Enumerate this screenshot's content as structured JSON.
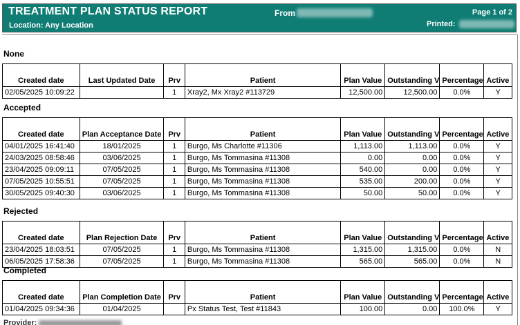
{
  "header": {
    "title": "TREATMENT PLAN STATUS REPORT",
    "location": "Location: Any Location",
    "from_label": "From",
    "page": "Page 1 of 2",
    "printed_label": "Printed:"
  },
  "columns": {
    "created": "Created date",
    "prv": "Prv",
    "patient": "Patient",
    "plan_value": "Plan Value",
    "outstanding": "Outstanding Value",
    "percentage": "Percentage Completed",
    "active": "Active Plan"
  },
  "sections": [
    {
      "title": "None",
      "date_header": "Last Updated Date",
      "rows": [
        [
          "02/05/2025 10:09:22",
          "",
          "1",
          "Xray2, Mx Xray2 #113729",
          "12,500.00",
          "12,500.00",
          "0.0%",
          "Y"
        ]
      ]
    },
    {
      "title": "Accepted",
      "date_header": "Plan Acceptance Date",
      "rows": [
        [
          "04/01/2025 16:41:40",
          "18/01/2025",
          "1",
          "Burgo, Ms Charlotte #11306",
          "1,113.00",
          "1,113.00",
          "0.0%",
          "Y"
        ],
        [
          "24/03/2025 08:58:46",
          "03/06/2025",
          "1",
          "Burgo, Ms Tommasina #11308",
          "0.00",
          "0.00",
          "0.0%",
          "Y"
        ],
        [
          "23/04/2025 09:09:11",
          "07/05/2025",
          "1",
          "Burgo, Ms Tommasina #11308",
          "540.00",
          "0.00",
          "0.0%",
          "Y"
        ],
        [
          "07/05/2025 10:55:51",
          "07/05/2025",
          "1",
          "Burgo, Ms Tommasina #11308",
          "535.00",
          "200.00",
          "0.0%",
          "Y"
        ],
        [
          "30/05/2025 09:40:30",
          "03/06/2025",
          "1",
          "Burgo, Ms Tommasina #11308",
          "50.00",
          "50.00",
          "0.0%",
          "Y"
        ]
      ]
    },
    {
      "title": "Rejected",
      "date_header": "Plan Rejection Date",
      "rows": [
        [
          "23/04/2025 18:03:51",
          "07/05/2025",
          "1",
          "Burgo, Ms Tommasina #11308",
          "1,315.00",
          "1,315.00",
          "0.0%",
          "N"
        ],
        [
          "06/05/2025 17:58:36",
          "07/05/2025",
          "1",
          "Burgo, Ms Tommasina #11308",
          "565.00",
          "565.00",
          "0.0%",
          "N"
        ]
      ]
    },
    {
      "title": "Completed",
      "date_header": "Plan Completion Date",
      "rows": [
        [
          "01/04/2025 09:34:36",
          "01/04/2025",
          "",
          "Px Status Test, Test #11843",
          "100.00",
          "0.00",
          "100.0%",
          "Y"
        ]
      ]
    }
  ],
  "footer": {
    "provider_label": "Provider:"
  }
}
